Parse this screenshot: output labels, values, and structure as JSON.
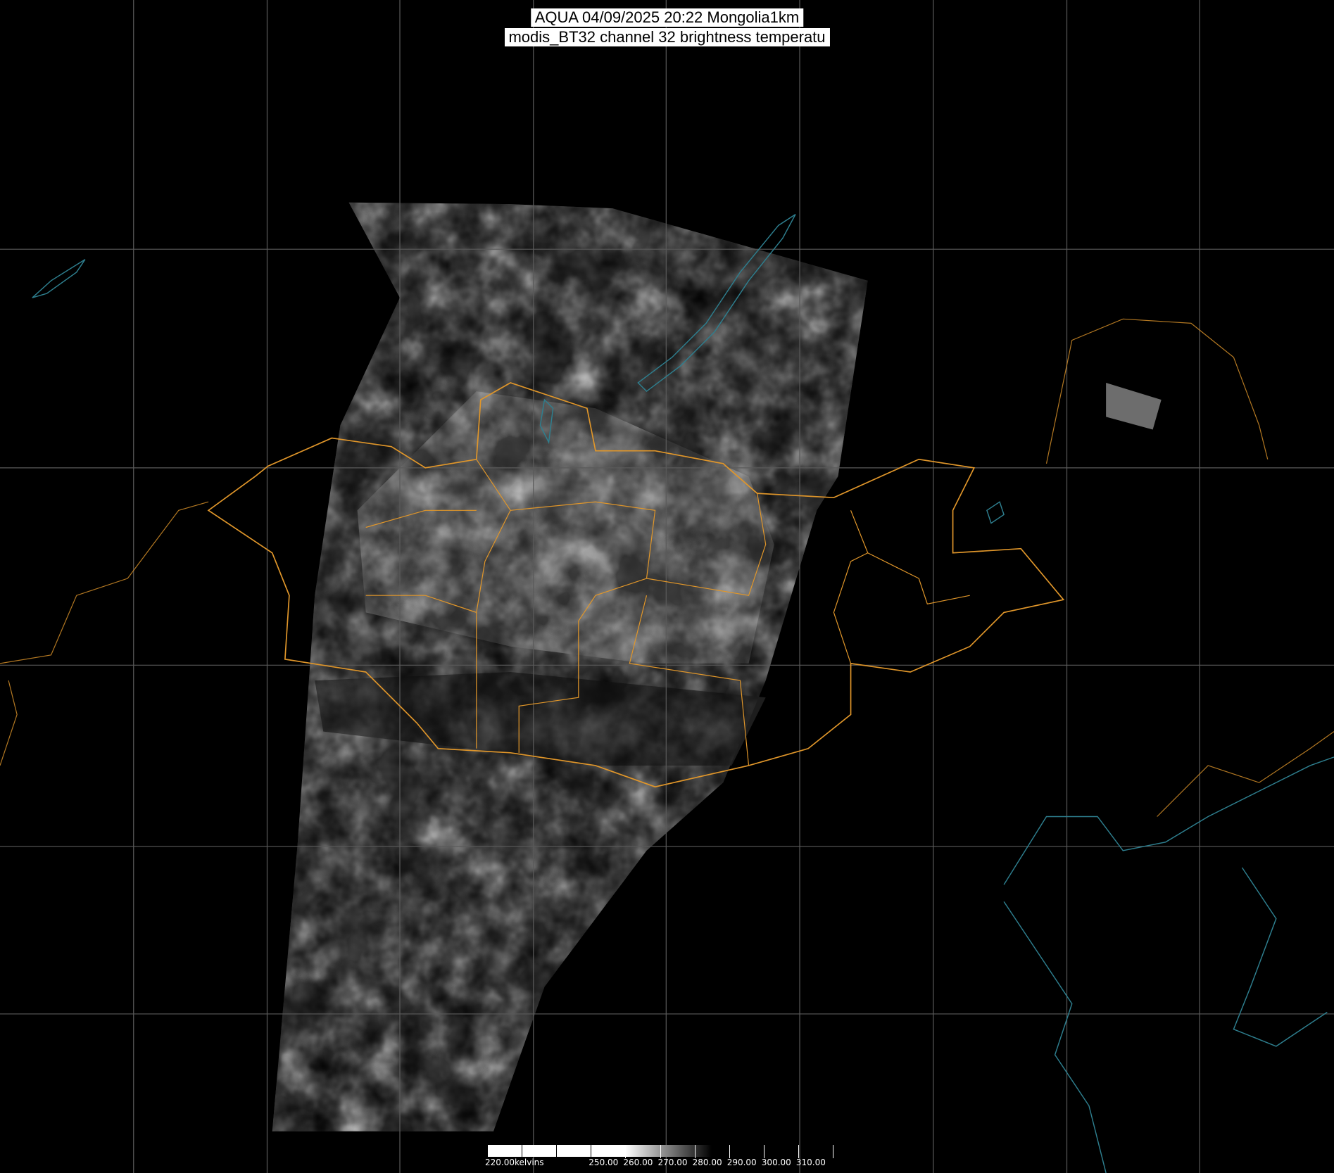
{
  "title": {
    "line1": "AQUA 04/09/2025 20:22 Mongolia1km",
    "line2": "modis_BT32 channel 32 brightness temperatu"
  },
  "colorbar": {
    "unit": "kelvins",
    "tick_labels": [
      "220.00kelvins",
      "",
      "",
      "250.00",
      "260.00",
      "270.00",
      "280.00",
      "290.00",
      "300.00",
      "310.00",
      ""
    ],
    "tick_values": [
      220,
      230,
      240,
      250,
      260,
      270,
      280,
      290,
      300,
      310,
      320
    ],
    "saturated_white_below": 260,
    "black_above": 285
  },
  "colors": {
    "background": "#000000",
    "graticule": "#5a5a5a",
    "borders": "#e0962a",
    "coastline_water": "#2e7f8f"
  }
}
